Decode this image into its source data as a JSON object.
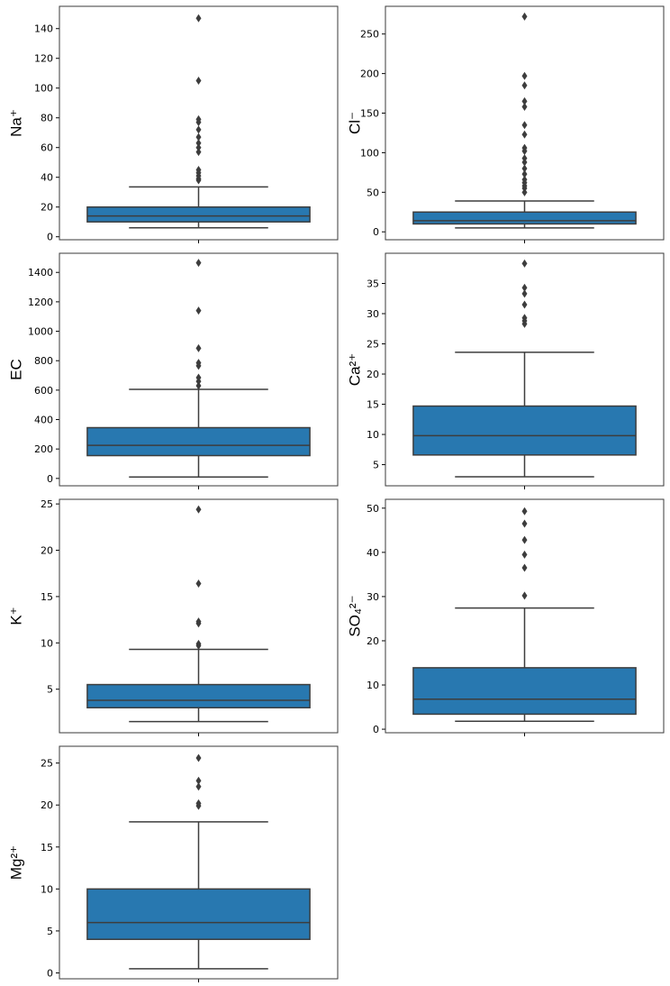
{
  "chart_data": [
    {
      "type": "box",
      "ylabel": "Na⁺",
      "yticks": [
        0,
        20,
        40,
        60,
        80,
        100,
        120,
        140
      ],
      "ylim": [
        -2,
        155
      ],
      "box": {
        "q1": 10,
        "median": 14,
        "q3": 20,
        "whisker_low": 6,
        "whisker_high": 33.5
      },
      "outliers": [
        38,
        39,
        41,
        43,
        45,
        57,
        60,
        63,
        67,
        72,
        77,
        79,
        105,
        147
      ]
    },
    {
      "type": "box",
      "ylabel": "Cl⁻",
      "yticks": [
        0,
        50,
        100,
        150,
        200,
        250
      ],
      "ylim": [
        -10,
        285
      ],
      "box": {
        "q1": 10,
        "median": 14,
        "q3": 25,
        "whisker_low": 5,
        "whisker_high": 39
      },
      "outliers": [
        50,
        55,
        58,
        62,
        66,
        73,
        80,
        88,
        93,
        102,
        106,
        123,
        135,
        158,
        165,
        185,
        197,
        272
      ]
    },
    {
      "type": "box",
      "ylabel": "EC",
      "yticks": [
        0,
        200,
        400,
        600,
        800,
        1000,
        1200,
        1400
      ],
      "ylim": [
        -50,
        1530
      ],
      "box": {
        "q1": 155,
        "median": 225,
        "q3": 345,
        "whisker_low": 10,
        "whisker_high": 605
      },
      "outliers": [
        630,
        660,
        685,
        765,
        785,
        885,
        1140,
        1465
      ]
    },
    {
      "type": "box",
      "ylabel": "Ca²⁺",
      "yticks": [
        5,
        10,
        15,
        20,
        25,
        30,
        35
      ],
      "ylim": [
        1.5,
        40
      ],
      "box": {
        "q1": 6.6,
        "median": 9.8,
        "q3": 14.7,
        "whisker_low": 3,
        "whisker_high": 23.6
      },
      "outliers": [
        28.3,
        28.8,
        29.3,
        31.5,
        33.3,
        34.3,
        38.3
      ]
    },
    {
      "type": "box",
      "ylabel": "K⁺",
      "yticks": [
        5,
        10,
        15,
        20,
        25
      ],
      "ylim": [
        0.3,
        25.5
      ],
      "box": {
        "q1": 3,
        "median": 3.8,
        "q3": 5.5,
        "whisker_low": 1.5,
        "whisker_high": 9.3
      },
      "outliers": [
        9.7,
        9.9,
        12.1,
        12.3,
        16.4,
        24.4
      ]
    },
    {
      "type": "box",
      "ylabel": "SO₄²⁻",
      "yticks": [
        0,
        10,
        20,
        30,
        40,
        50
      ],
      "ylim": [
        -0.8,
        52
      ],
      "box": {
        "q1": 3.4,
        "median": 6.8,
        "q3": 13.9,
        "whisker_low": 1.8,
        "whisker_high": 27.4
      },
      "outliers": [
        30.2,
        36.5,
        39.5,
        42.8,
        46.5,
        49.3
      ]
    },
    {
      "type": "box",
      "ylabel": "Mg²⁺",
      "yticks": [
        0,
        5,
        10,
        15,
        20,
        25
      ],
      "ylim": [
        -0.7,
        27
      ],
      "box": {
        "q1": 4,
        "median": 6,
        "q3": 10,
        "whisker_low": 0.5,
        "whisker_high": 18
      },
      "outliers": [
        19.9,
        20.2,
        22.2,
        22.9,
        25.6
      ]
    }
  ],
  "colors": {
    "box_fill": "#2878b0",
    "box_edge": "#3d3d3d",
    "frame": "#3a3a3a",
    "outlier": "#3d3d3d"
  }
}
